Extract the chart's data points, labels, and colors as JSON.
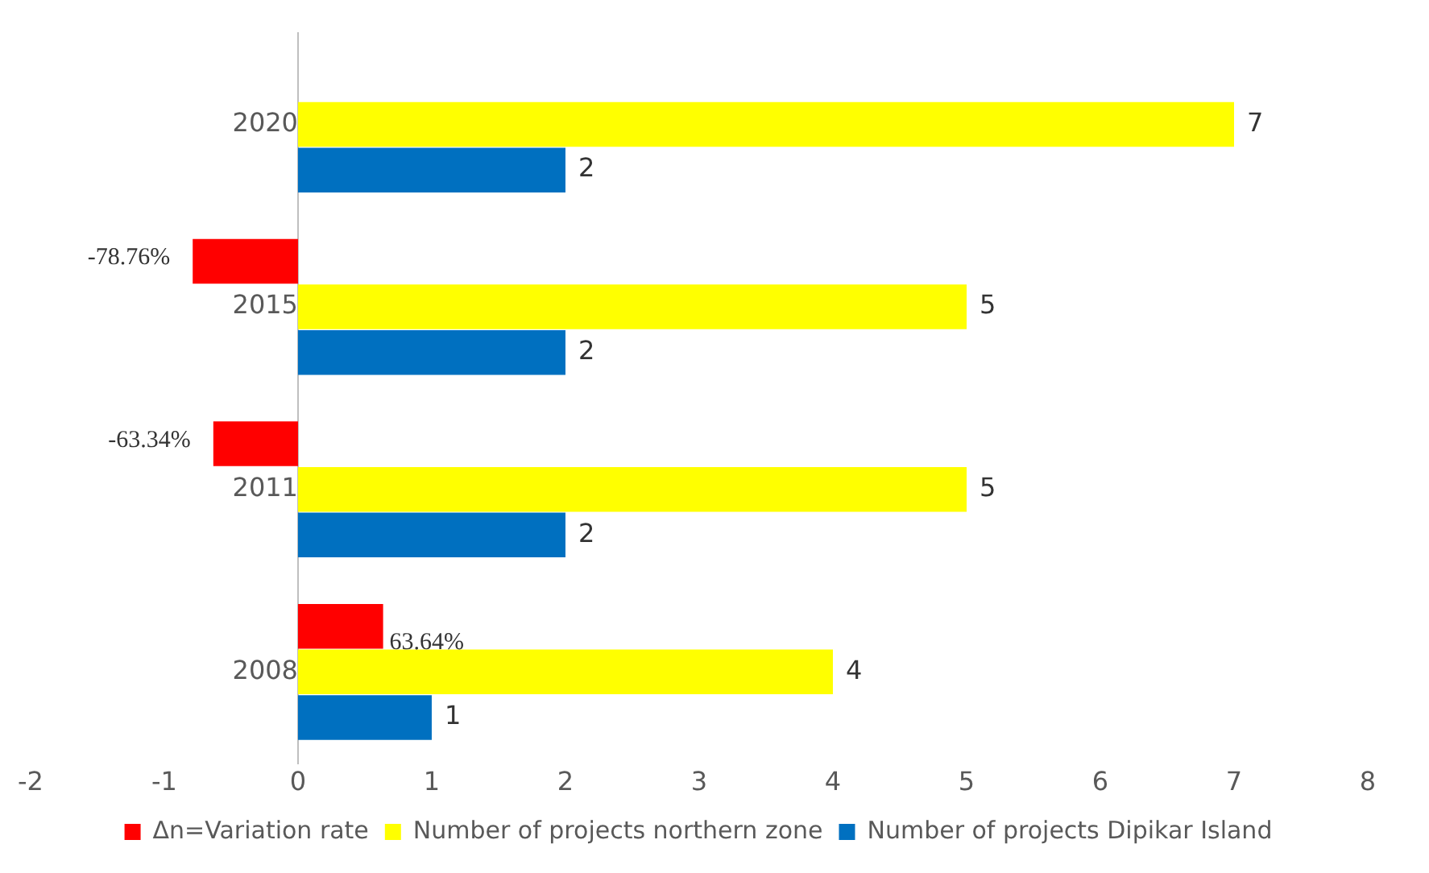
{
  "chart_data": {
    "type": "bar",
    "orientation": "horizontal",
    "categories": [
      "2020",
      "2015",
      "2011",
      "2008"
    ],
    "series": [
      {
        "name": "Δn=Variation rate",
        "color": "#ff0000",
        "values": [
          null,
          -0.7876,
          -0.6334,
          0.6364
        ],
        "value_labels": [
          null,
          "-78.76%",
          "-63.34%",
          "63.64%"
        ]
      },
      {
        "name": "Number of projects northern zone",
        "color": "#ffff00",
        "values": [
          7,
          5,
          5,
          4
        ],
        "value_labels": [
          "7",
          "5",
          "5",
          "4"
        ]
      },
      {
        "name": "Number of projects Dipikar Island",
        "color": "#0070c0",
        "values": [
          2,
          2,
          2,
          1
        ],
        "value_labels": [
          "2",
          "2",
          "2",
          "1"
        ]
      }
    ],
    "xlim": [
      -2,
      8
    ],
    "xticks": [
      -2,
      -1,
      0,
      1,
      2,
      3,
      4,
      5,
      6,
      7,
      8
    ],
    "grid": false,
    "legend": "bottom"
  }
}
